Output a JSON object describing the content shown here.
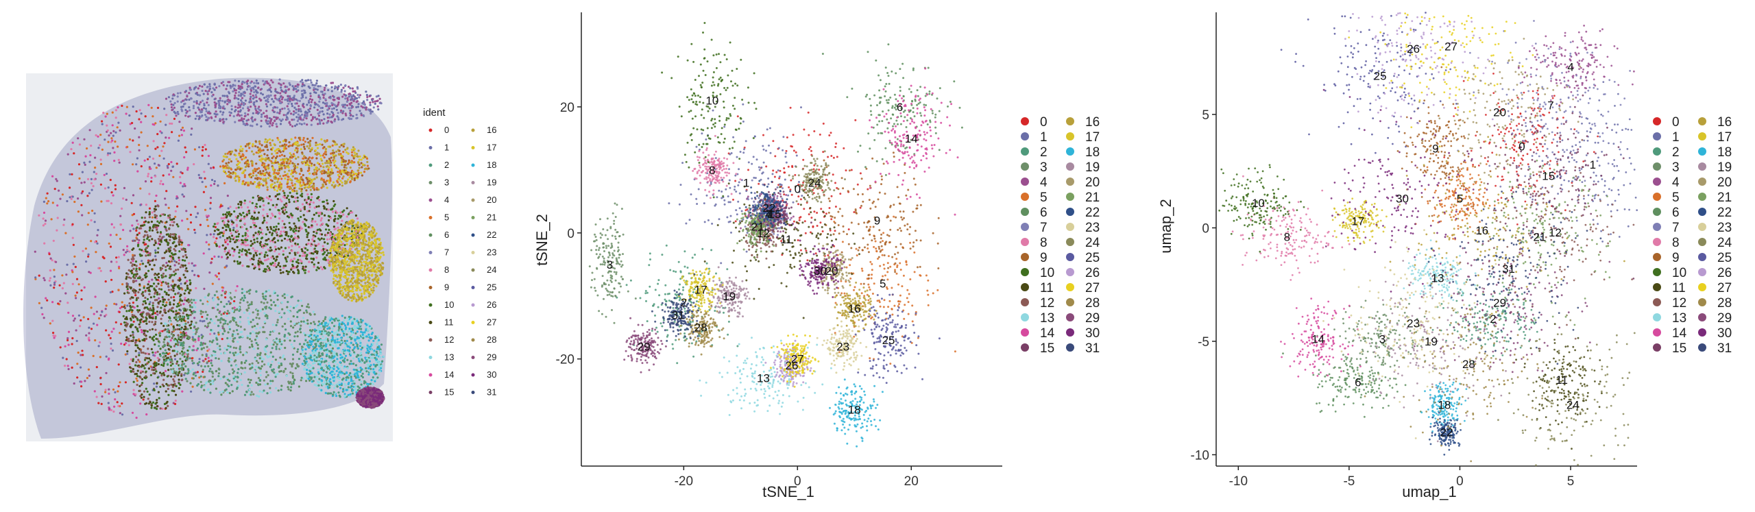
{
  "colors": [
    "#d62728",
    "#6b6fa8",
    "#4f9a7b",
    "#6e8f6a",
    "#9b4f8f",
    "#d9702a",
    "#5f8f5f",
    "#7f7fb5",
    "#e07aa8",
    "#a8642a",
    "#3f6f1f",
    "#4a4a15",
    "#8c5a55",
    "#8fd8e0",
    "#d64a9e",
    "#7a3f66",
    "#b8a03a",
    "#d8c42a",
    "#2fb4d8",
    "#a88aa0",
    "#a89a6a",
    "#7aa060",
    "#2f4f88",
    "#d8cf9a",
    "#8a8a5a",
    "#5a5aa0",
    "#b89ad0",
    "#e8d020",
    "#a08a4a",
    "#8a4a7a",
    "#7a2a7a",
    "#3a4a7a"
  ],
  "legend_ids": [
    "0",
    "1",
    "2",
    "3",
    "4",
    "5",
    "6",
    "7",
    "8",
    "9",
    "10",
    "11",
    "12",
    "13",
    "14",
    "15",
    "16",
    "17",
    "18",
    "19",
    "20",
    "21",
    "22",
    "23",
    "24",
    "25",
    "26",
    "27",
    "28",
    "29",
    "30",
    "31"
  ],
  "panel1": {
    "legend_title": "ident"
  },
  "chart_data": [
    {
      "type": "scatter",
      "title": "",
      "xlabel": "",
      "ylabel": "",
      "description_kind": "spatial",
      "legend_placement": "right",
      "series_names": [
        "0",
        "1",
        "2",
        "3",
        "4",
        "5",
        "6",
        "7",
        "8",
        "9",
        "10",
        "11",
        "12",
        "13",
        "14",
        "15",
        "16",
        "17",
        "18",
        "19",
        "20",
        "21",
        "22",
        "23",
        "24",
        "25",
        "26",
        "27",
        "28",
        "29",
        "30",
        "31"
      ]
    },
    {
      "type": "scatter",
      "title": "",
      "xlabel": "tSNE_1",
      "ylabel": "tSNE_2",
      "xticks": [
        -20,
        0,
        20
      ],
      "yticks": [
        20,
        0,
        -20
      ],
      "xlim": [
        -38,
        36
      ],
      "ylim": [
        -37,
        35
      ],
      "grid": false,
      "legend_placement": "right",
      "cluster_centers": [
        {
          "label": "0",
          "x": 0,
          "y": 7
        },
        {
          "label": "1",
          "x": -9,
          "y": 8
        },
        {
          "label": "2",
          "x": -20,
          "y": -11
        },
        {
          "label": "3",
          "x": -33,
          "y": -5
        },
        {
          "label": "4",
          "x": -5,
          "y": 3
        },
        {
          "label": "5",
          "x": 15,
          "y": -8
        },
        {
          "label": "6",
          "x": 18,
          "y": 20
        },
        {
          "label": "7",
          "x": -5,
          "y": 3
        },
        {
          "label": "8",
          "x": -15,
          "y": 10
        },
        {
          "label": "9",
          "x": 14,
          "y": 2
        },
        {
          "label": "10",
          "x": -15,
          "y": 21
        },
        {
          "label": "11",
          "x": -2,
          "y": -1
        },
        {
          "label": "12",
          "x": -6,
          "y": 0
        },
        {
          "label": "13",
          "x": -6,
          "y": -23
        },
        {
          "label": "14",
          "x": 20,
          "y": 15
        },
        {
          "label": "15",
          "x": -4,
          "y": 3
        },
        {
          "label": "16",
          "x": 10,
          "y": -12
        },
        {
          "label": "17",
          "x": -17,
          "y": -9
        },
        {
          "label": "18",
          "x": 10,
          "y": -28
        },
        {
          "label": "19",
          "x": -12,
          "y": -10
        },
        {
          "label": "20",
          "x": 6,
          "y": -6
        },
        {
          "label": "21",
          "x": -7,
          "y": 1
        },
        {
          "label": "22",
          "x": -5,
          "y": 4
        },
        {
          "label": "23",
          "x": 8,
          "y": -18
        },
        {
          "label": "24",
          "x": 3,
          "y": 8
        },
        {
          "label": "25",
          "x": 16,
          "y": -17
        },
        {
          "label": "26",
          "x": -1,
          "y": -21
        },
        {
          "label": "27",
          "x": 0,
          "y": -20
        },
        {
          "label": "28",
          "x": -17,
          "y": -15
        },
        {
          "label": "29",
          "x": -27,
          "y": -18
        },
        {
          "label": "30",
          "x": 4,
          "y": -6
        },
        {
          "label": "31",
          "x": -21,
          "y": -13
        }
      ]
    },
    {
      "type": "scatter",
      "title": "",
      "xlabel": "umap_1",
      "ylabel": "umap_2",
      "xticks": [
        -10,
        -5,
        0,
        5
      ],
      "yticks": [
        5,
        0,
        -5,
        -10
      ],
      "xlim": [
        -11,
        8
      ],
      "ylim": [
        -10.5,
        9.5
      ],
      "grid": false,
      "legend_placement": "right",
      "cluster_centers": [
        {
          "label": "0",
          "x": 2.8,
          "y": 3.6
        },
        {
          "label": "1",
          "x": 6,
          "y": 2.8
        },
        {
          "label": "2",
          "x": 1.5,
          "y": -4
        },
        {
          "label": "3",
          "x": -3.5,
          "y": -4.9
        },
        {
          "label": "4",
          "x": 5,
          "y": 7.1
        },
        {
          "label": "5",
          "x": 0,
          "y": 1.3
        },
        {
          "label": "6",
          "x": -4.6,
          "y": -6.8
        },
        {
          "label": "7",
          "x": 4.1,
          "y": 5.4
        },
        {
          "label": "8",
          "x": -7.8,
          "y": -0.4
        },
        {
          "label": "9",
          "x": -1.1,
          "y": 3.5
        },
        {
          "label": "10",
          "x": -9.1,
          "y": 1.1
        },
        {
          "label": "11",
          "x": 4.6,
          "y": -6.7
        },
        {
          "label": "12",
          "x": 4.3,
          "y": -0.2
        },
        {
          "label": "13",
          "x": -1,
          "y": -2.2
        },
        {
          "label": "14",
          "x": -6.4,
          "y": -4.9
        },
        {
          "label": "15",
          "x": 4,
          "y": 2.3
        },
        {
          "label": "16",
          "x": 1,
          "y": -0.1
        },
        {
          "label": "17",
          "x": -4.6,
          "y": 0.3
        },
        {
          "label": "18",
          "x": -0.7,
          "y": -7.8
        },
        {
          "label": "19",
          "x": -1.3,
          "y": -5
        },
        {
          "label": "20",
          "x": 1.8,
          "y": 5.1
        },
        {
          "label": "21",
          "x": 3.6,
          "y": -0.4
        },
        {
          "label": "22",
          "x": -0.6,
          "y": -9
        },
        {
          "label": "23",
          "x": -2.1,
          "y": -4.2
        },
        {
          "label": "24",
          "x": 5.1,
          "y": -7.8
        },
        {
          "label": "25",
          "x": -3.6,
          "y": 6.7
        },
        {
          "label": "26",
          "x": -2.1,
          "y": 7.9
        },
        {
          "label": "27",
          "x": -0.4,
          "y": 8
        },
        {
          "label": "28",
          "x": 0.4,
          "y": -6
        },
        {
          "label": "29",
          "x": 1.8,
          "y": -3.3
        },
        {
          "label": "30",
          "x": -2.6,
          "y": 1.3
        },
        {
          "label": "31",
          "x": 2.2,
          "y": -1.8
        }
      ]
    }
  ]
}
